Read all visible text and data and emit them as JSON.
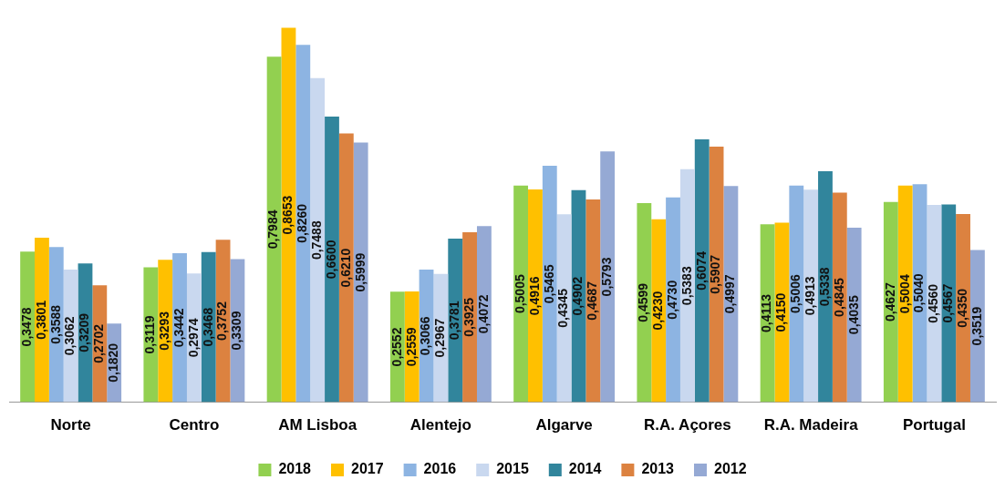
{
  "chart_data": {
    "type": "bar",
    "categories": [
      "Norte",
      "Centro",
      "AM Lisboa",
      "Alentejo",
      "Algarve",
      "R.A. Açores",
      "R.A. Madeira",
      "Portugal"
    ],
    "tick_labels": "x",
    "legend": "bottom",
    "grid": false,
    "series": [
      {
        "name": "2018",
        "color": "#92d050",
        "values": [
          0.3478,
          0.3119,
          0.7984,
          0.2552,
          0.5005,
          0.4599,
          0.4113,
          0.4627
        ],
        "value_labels": [
          "0,3478",
          "0,3119",
          "0,7984",
          "0,2552",
          "0,5005",
          "0,4599",
          "0,4113",
          "0,4627"
        ]
      },
      {
        "name": "2017",
        "color": "#ffc000",
        "values": [
          0.3801,
          0.3293,
          0.8653,
          0.2559,
          0.4916,
          0.423,
          0.415,
          0.5004
        ],
        "value_labels": [
          "0,3801",
          "0,3293",
          "0,8653",
          "0,2559",
          "0,4916",
          "0,4230",
          "0,4150",
          "0,5004"
        ]
      },
      {
        "name": "2016",
        "color": "#8db4e2",
        "values": [
          0.3588,
          0.3442,
          0.826,
          0.3066,
          0.5465,
          0.473,
          0.5006,
          0.504
        ],
        "value_labels": [
          "0,3588",
          "0,3442",
          "0,8260",
          "0,3066",
          "0,5465",
          "0,4730",
          "0,5006",
          "0,5040"
        ]
      },
      {
        "name": "2015",
        "color": "#c9d8ef",
        "values": [
          0.3062,
          0.2974,
          0.7488,
          0.2967,
          0.4345,
          0.5383,
          0.4913,
          0.456
        ],
        "value_labels": [
          "0,3062",
          "0,2974",
          "0,7488",
          "0,2967",
          "0,4345",
          "0,5383",
          "0,4913",
          "0,4560"
        ]
      },
      {
        "name": "2014",
        "color": "#31859c",
        "values": [
          0.3209,
          0.3468,
          0.66,
          0.3781,
          0.4902,
          0.6074,
          0.5338,
          0.4567
        ],
        "value_labels": [
          "0,3209",
          "0,3468",
          "0,6600",
          "0,3781",
          "0,4902",
          "0,6074",
          "0,5338",
          "0,4567"
        ]
      },
      {
        "name": "2013",
        "color": "#dc8240",
        "values": [
          0.2702,
          0.3752,
          0.621,
          0.3925,
          0.4687,
          0.5907,
          0.4845,
          0.435
        ],
        "value_labels": [
          "0,2702",
          "0,3752",
          "0,6210",
          "0,3925",
          "0,4687",
          "0,5907",
          "0,4845",
          "0,4350"
        ]
      },
      {
        "name": "2012",
        "color": "#95a9d4",
        "values": [
          0.182,
          0.3309,
          0.5999,
          0.4072,
          0.5793,
          0.4997,
          0.4035,
          0.3519
        ],
        "value_labels": [
          "0,1820",
          "0,3309",
          "0,5999",
          "0,4072",
          "0,5793",
          "0,4997",
          "0,4035",
          "0,3519"
        ]
      }
    ]
  }
}
